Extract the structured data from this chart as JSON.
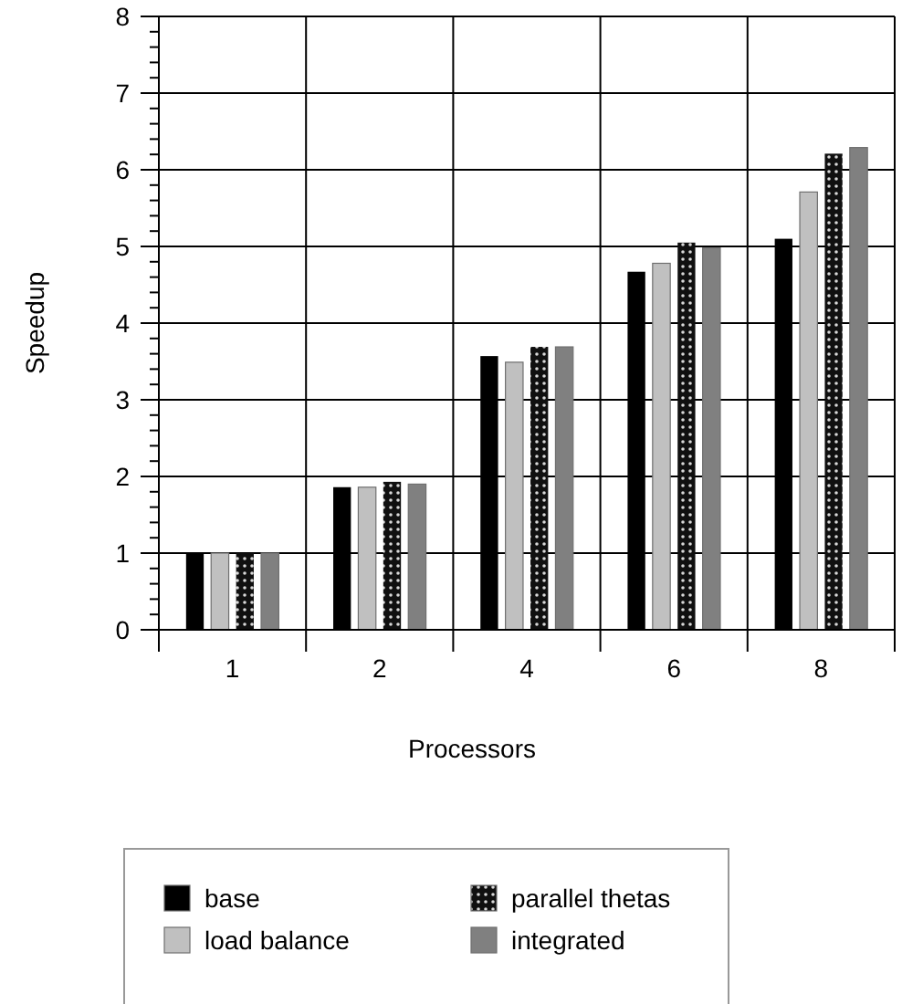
{
  "chart_data": {
    "type": "bar",
    "xlabel": "Processors",
    "ylabel": "Speedup",
    "categories": [
      "1",
      "2",
      "4",
      "6",
      "8"
    ],
    "series": [
      {
        "name": "base",
        "color": "#000000",
        "values": [
          1,
          1.86,
          3.57,
          4.67,
          5.1
        ]
      },
      {
        "name": "load balance",
        "color": "#c0c0c0",
        "values": [
          1,
          1.86,
          3.49,
          4.78,
          5.71
        ]
      },
      {
        "name": "parallel thetas",
        "color": "#101010",
        "values": [
          1,
          1.93,
          3.69,
          5.05,
          6.21
        ]
      },
      {
        "name": "integrated",
        "color": "#808080",
        "values": [
          1,
          1.9,
          3.69,
          4.98,
          6.29
        ]
      }
    ],
    "ylim": [
      0,
      8
    ],
    "yticks": [
      0,
      1,
      2,
      3,
      4,
      5,
      6,
      7,
      8
    ],
    "grid": true,
    "legend": "bottom"
  }
}
